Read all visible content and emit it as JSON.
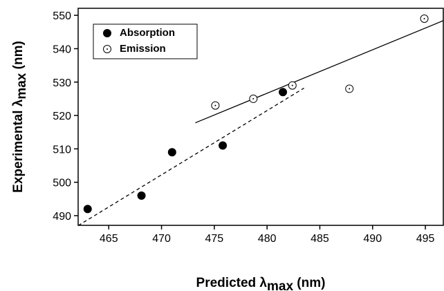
{
  "chart_data": {
    "type": "scatter",
    "x_label": {
      "text": "Predicted λ",
      "sub": "max",
      "unit": " (nm)"
    },
    "y_label": {
      "text": "Experimental  λ",
      "sub": "max",
      "unit": " (nm)"
    },
    "xlim": [
      462.1,
      496.7
    ],
    "ylim": [
      487.1,
      552.1
    ],
    "xticks": [
      465,
      470,
      475,
      480,
      485,
      490,
      495
    ],
    "yticks": [
      490,
      500,
      510,
      520,
      530,
      540,
      550
    ],
    "legend": "upper left",
    "series": [
      {
        "name": "Absorption",
        "marker": "filled",
        "color": "#000000",
        "x": [
          463.0,
          468.1,
          471.0,
          475.8,
          481.5
        ],
        "values": [
          492,
          496,
          509,
          511,
          527
        ]
      },
      {
        "name": "Emission",
        "marker": "open-dot",
        "color": "#000000",
        "x": [
          475.1,
          478.7,
          482.4,
          487.8,
          494.9
        ],
        "values": [
          523,
          525,
          529,
          528,
          549
        ]
      }
    ],
    "fit_lines": [
      {
        "style": "solid",
        "x": [
          473.2,
          496.7
        ],
        "values": [
          517.8,
          548.4
        ]
      },
      {
        "style": "dashed",
        "x": [
          461.1,
          483.5
        ],
        "values": [
          485.1,
          528.2
        ]
      }
    ]
  }
}
